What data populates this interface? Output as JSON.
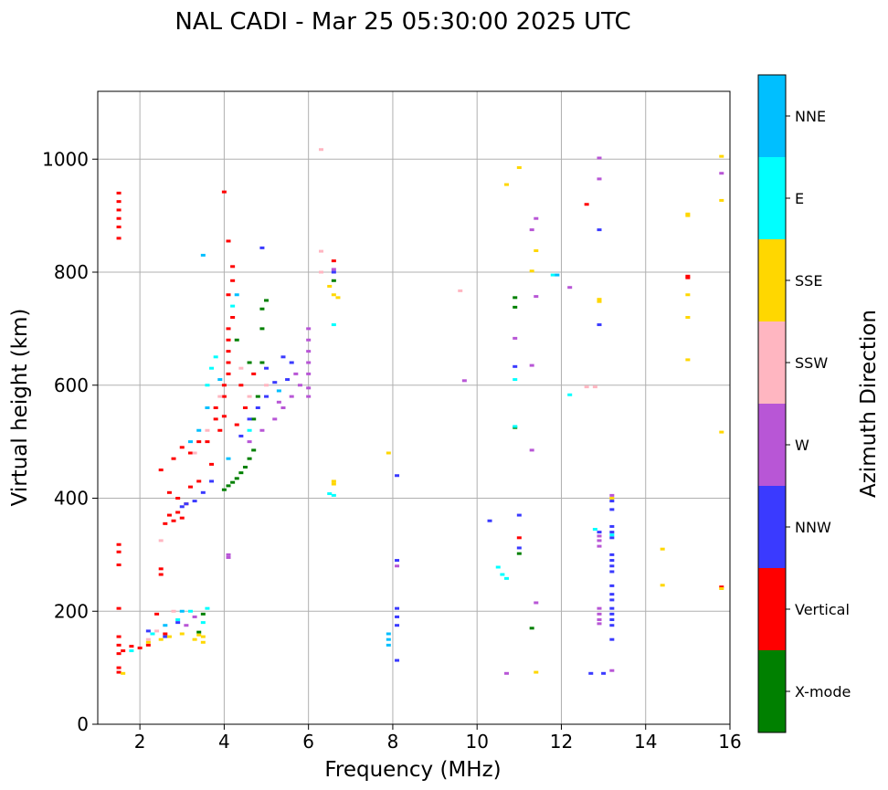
{
  "chart_data": {
    "type": "scatter",
    "title": "NAL CADI - Mar 25 05:30:00 2025 UTC",
    "xlabel": "Frequency (MHz)",
    "ylabel": "Virtual height (km)",
    "xlim": [
      1,
      16
    ],
    "ylim": [
      0,
      1120
    ],
    "xticks": [
      2,
      4,
      6,
      8,
      10,
      12,
      14,
      16
    ],
    "yticks": [
      0,
      200,
      400,
      600,
      800,
      1000
    ],
    "grid": true,
    "colorbar": {
      "label": "Azimuth Direction",
      "categories": [
        {
          "name": "X-mode",
          "color": "#008000"
        },
        {
          "name": "Vertical",
          "color": "#ff0000"
        },
        {
          "name": "NNW",
          "color": "#3a3aff"
        },
        {
          "name": "W",
          "color": "#b856d6"
        },
        {
          "name": "SSW",
          "color": "#ffb6c1"
        },
        {
          "name": "SSE",
          "color": "#ffd700"
        },
        {
          "name": "E",
          "color": "#00ffff"
        },
        {
          "name": "NNE",
          "color": "#00bfff"
        }
      ]
    },
    "series": [
      {
        "name": "Vertical",
        "points": [
          [
            1.5,
            940
          ],
          [
            1.5,
            925
          ],
          [
            1.5,
            910
          ],
          [
            1.5,
            895
          ],
          [
            1.5,
            880
          ],
          [
            1.5,
            860
          ],
          [
            1.5,
            318
          ],
          [
            1.5,
            305
          ],
          [
            1.5,
            282
          ],
          [
            1.5,
            205
          ],
          [
            1.5,
            155
          ],
          [
            1.5,
            140
          ],
          [
            1.5,
            125
          ],
          [
            1.5,
            100
          ],
          [
            1.5,
            92
          ],
          [
            1.6,
            130
          ],
          [
            1.8,
            138
          ],
          [
            2,
            135
          ],
          [
            2.2,
            140
          ],
          [
            2.4,
            195
          ],
          [
            2.5,
            275
          ],
          [
            2.5,
            265
          ],
          [
            2.6,
            160
          ],
          [
            2.6,
            355
          ],
          [
            2.7,
            370
          ],
          [
            2.8,
            360
          ],
          [
            2.9,
            375
          ],
          [
            3,
            365
          ],
          [
            2.7,
            410
          ],
          [
            2.9,
            400
          ],
          [
            3.1,
            390
          ],
          [
            3.2,
            420
          ],
          [
            3.4,
            430
          ],
          [
            2.5,
            450
          ],
          [
            2.8,
            470
          ],
          [
            3,
            490
          ],
          [
            3.2,
            480
          ],
          [
            3.4,
            500
          ],
          [
            3.6,
            500
          ],
          [
            3.7,
            460
          ],
          [
            3.8,
            540
          ],
          [
            3.8,
            560
          ],
          [
            3.9,
            520
          ],
          [
            4,
            545
          ],
          [
            4,
            580
          ],
          [
            4,
            600
          ],
          [
            4.1,
            620
          ],
          [
            4.1,
            640
          ],
          [
            4.1,
            660
          ],
          [
            4.1,
            680
          ],
          [
            4.1,
            700
          ],
          [
            4.2,
            720
          ],
          [
            4.1,
            760
          ],
          [
            4.2,
            785
          ],
          [
            4.3,
            530
          ],
          [
            4.5,
            560
          ],
          [
            4.4,
            600
          ],
          [
            4.7,
            620
          ],
          [
            4,
            942
          ],
          [
            4.1,
            855
          ],
          [
            4.2,
            810
          ],
          [
            6.6,
            820
          ],
          [
            11,
            330
          ],
          [
            12.6,
            920
          ],
          [
            15,
            793
          ],
          [
            15,
            790
          ],
          [
            15.8,
            243
          ]
        ]
      },
      {
        "name": "X-mode",
        "points": [
          [
            3.4,
            163
          ],
          [
            3.5,
            195
          ],
          [
            4,
            415
          ],
          [
            4.1,
            422
          ],
          [
            4.2,
            428
          ],
          [
            4.3,
            435
          ],
          [
            4.4,
            445
          ],
          [
            4.5,
            455
          ],
          [
            4.6,
            470
          ],
          [
            4.7,
            485
          ],
          [
            4.7,
            540
          ],
          [
            4.8,
            580
          ],
          [
            4.9,
            640
          ],
          [
            4.9,
            700
          ],
          [
            4.9,
            735
          ],
          [
            5,
            750
          ],
          [
            4.3,
            680
          ],
          [
            4.6,
            640
          ],
          [
            6.6,
            785
          ],
          [
            10.9,
            755
          ],
          [
            10.9,
            738
          ],
          [
            10.9,
            525
          ],
          [
            11,
            302
          ],
          [
            11.3,
            170
          ]
        ]
      },
      {
        "name": "NNW",
        "points": [
          [
            2.2,
            165
          ],
          [
            2.6,
            155
          ],
          [
            2.9,
            180
          ],
          [
            3,
            385
          ],
          [
            3.1,
            390
          ],
          [
            3.3,
            395
          ],
          [
            3.5,
            410
          ],
          [
            3.7,
            430
          ],
          [
            4.4,
            510
          ],
          [
            4.6,
            540
          ],
          [
            4.8,
            560
          ],
          [
            5,
            580
          ],
          [
            5.2,
            605
          ],
          [
            5,
            630
          ],
          [
            5.5,
            610
          ],
          [
            5.6,
            640
          ],
          [
            5.4,
            650
          ],
          [
            4.9,
            843
          ],
          [
            6.6,
            800
          ],
          [
            8.1,
            440
          ],
          [
            8.1,
            290
          ],
          [
            8.1,
            205
          ],
          [
            8.1,
            190
          ],
          [
            8.1,
            175
          ],
          [
            8.1,
            113
          ],
          [
            10.3,
            360
          ],
          [
            10.9,
            633
          ],
          [
            11,
            370
          ],
          [
            11,
            312
          ],
          [
            12.9,
            875
          ],
          [
            12.9,
            707
          ],
          [
            12.7,
            90
          ],
          [
            13,
            90
          ],
          [
            13.2,
            395
          ],
          [
            13.2,
            380
          ],
          [
            13.2,
            350
          ],
          [
            13.2,
            340
          ],
          [
            13.2,
            330
          ],
          [
            13.2,
            300
          ],
          [
            13.2,
            290
          ],
          [
            13.2,
            280
          ],
          [
            13.2,
            270
          ],
          [
            13.2,
            245
          ],
          [
            13.2,
            230
          ],
          [
            13.2,
            220
          ],
          [
            13.2,
            205
          ],
          [
            13.2,
            195
          ],
          [
            13.2,
            185
          ],
          [
            13.2,
            175
          ],
          [
            12.9,
            340
          ],
          [
            13.2,
            150
          ]
        ]
      },
      {
        "name": "W",
        "points": [
          [
            3.3,
            190
          ],
          [
            3.1,
            175
          ],
          [
            4.1,
            300
          ],
          [
            4.1,
            295
          ],
          [
            4.6,
            500
          ],
          [
            4.9,
            520
          ],
          [
            5.2,
            540
          ],
          [
            5.4,
            560
          ],
          [
            5.6,
            580
          ],
          [
            5.8,
            600
          ],
          [
            6,
            580
          ],
          [
            6,
            595
          ],
          [
            6,
            620
          ],
          [
            6,
            640
          ],
          [
            6,
            660
          ],
          [
            6,
            680
          ],
          [
            6,
            700
          ],
          [
            5.7,
            620
          ],
          [
            5.3,
            570
          ],
          [
            6.6,
            805
          ],
          [
            8.1,
            280
          ],
          [
            9.7,
            608
          ],
          [
            10.7,
            90
          ],
          [
            10.9,
            683
          ],
          [
            11.3,
            635
          ],
          [
            11.3,
            485
          ],
          [
            11.3,
            875
          ],
          [
            11.4,
            757
          ],
          [
            11.4,
            895
          ],
          [
            11.4,
            215
          ],
          [
            12.2,
            773
          ],
          [
            12.9,
            1002
          ],
          [
            12.9,
            965
          ],
          [
            12.9,
            333
          ],
          [
            12.9,
            325
          ],
          [
            12.9,
            315
          ],
          [
            12.9,
            205
          ],
          [
            12.9,
            195
          ],
          [
            12.9,
            185
          ],
          [
            12.9,
            178
          ],
          [
            13.2,
            405
          ],
          [
            13.2,
            95
          ],
          [
            15.8,
            975
          ]
        ]
      },
      {
        "name": "SSW",
        "points": [
          [
            2.2,
            150
          ],
          [
            2.4,
            165
          ],
          [
            2.5,
            325
          ],
          [
            2.8,
            200
          ],
          [
            3.3,
            480
          ],
          [
            3.6,
            520
          ],
          [
            3.9,
            580
          ],
          [
            4.4,
            630
          ],
          [
            4.6,
            580
          ],
          [
            5,
            600
          ],
          [
            6.3,
            1017
          ],
          [
            6.3,
            837
          ],
          [
            6.3,
            800
          ],
          [
            9.6,
            767
          ],
          [
            12.6,
            597
          ],
          [
            12.8,
            597
          ]
        ]
      },
      {
        "name": "SSE",
        "points": [
          [
            1.6,
            90
          ],
          [
            2.2,
            145
          ],
          [
            2.5,
            150
          ],
          [
            2.7,
            155
          ],
          [
            3,
            160
          ],
          [
            3.3,
            150
          ],
          [
            3.4,
            158
          ],
          [
            3.5,
            145
          ],
          [
            3.5,
            155
          ],
          [
            6.5,
            775
          ],
          [
            6.6,
            760
          ],
          [
            6.7,
            755
          ],
          [
            6.6,
            430
          ],
          [
            6.6,
            425
          ],
          [
            7.9,
            480
          ],
          [
            11.0,
            985
          ],
          [
            10.7,
            955
          ],
          [
            11.3,
            802
          ],
          [
            11.4,
            838
          ],
          [
            11.4,
            92
          ],
          [
            12.9,
            752
          ],
          [
            12.9,
            748
          ],
          [
            13.2,
            400
          ],
          [
            14.4,
            310
          ],
          [
            14.4,
            246
          ],
          [
            15,
            903
          ],
          [
            15,
            900
          ],
          [
            15,
            760
          ],
          [
            15,
            720
          ],
          [
            15,
            645
          ],
          [
            15.8,
            1005
          ],
          [
            15.8,
            927
          ],
          [
            15.8,
            517
          ],
          [
            15.8,
            240
          ]
        ]
      },
      {
        "name": "E",
        "points": [
          [
            1.8,
            130
          ],
          [
            2.3,
            160
          ],
          [
            2.9,
            185
          ],
          [
            3.2,
            200
          ],
          [
            3.5,
            180
          ],
          [
            3.6,
            205
          ],
          [
            3.6,
            600
          ],
          [
            3.7,
            630
          ],
          [
            3.8,
            650
          ],
          [
            4.2,
            740
          ],
          [
            4.6,
            520
          ],
          [
            6.5,
            408
          ],
          [
            6.6,
            405
          ],
          [
            6.6,
            707
          ],
          [
            10.5,
            278
          ],
          [
            10.6,
            265
          ],
          [
            10.7,
            258
          ],
          [
            10.9,
            610
          ],
          [
            10.9,
            527
          ],
          [
            11.8,
            795
          ],
          [
            12.2,
            583
          ],
          [
            12.8,
            345
          ],
          [
            13.2,
            335
          ]
        ]
      },
      {
        "name": "NNE",
        "points": [
          [
            2.6,
            175
          ],
          [
            3,
            200
          ],
          [
            3.2,
            500
          ],
          [
            3.4,
            520
          ],
          [
            3.6,
            560
          ],
          [
            3.9,
            610
          ],
          [
            4.1,
            470
          ],
          [
            4.3,
            760
          ],
          [
            3.5,
            830
          ],
          [
            5.3,
            590
          ],
          [
            7.9,
            160
          ],
          [
            7.9,
            150
          ],
          [
            7.9,
            140
          ],
          [
            11.9,
            795
          ]
        ]
      }
    ]
  }
}
